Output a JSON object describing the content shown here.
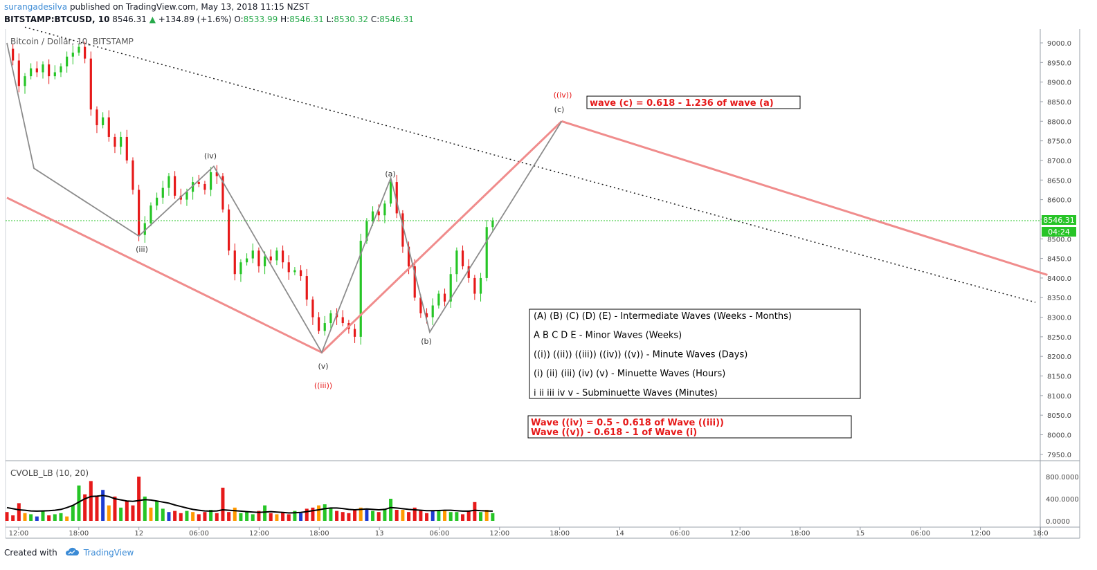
{
  "header": {
    "author": "surangadesilva",
    "published_text": "published on TradingView.com, May 13, 2018 11:15 NZST",
    "symbol": "BITSTAMP:BTCUSD, 10",
    "last": "8546.31",
    "arrow": "▲",
    "change": "+134.89 (+1.6%)",
    "open_label": "O:",
    "open": "8533.99",
    "high_label": "H:",
    "high": "8546.31",
    "low_label": "L:",
    "low": "8530.32",
    "close_label": "C:",
    "close": "8546.31"
  },
  "chart_title": "Bitcoin / Dollar, 10, BITSTAMP",
  "price_badge": "8546.31",
  "countdown_badge": "04:24",
  "indicator_label": "CVOLB_LB (10, 20)",
  "footer": {
    "created_with": "Created with",
    "brand": "TradingView",
    "icon": "tradingview-cloud-icon"
  },
  "colors": {
    "up": "#26c526",
    "down": "#e61919",
    "wave_red": "#f08c8c",
    "wave_gray": "#8c8c8c",
    "price_line": "#27c427",
    "annotation_red": "#e61919"
  },
  "annotations": {
    "wave_c_box": "wave (c) = 0.618 - 1.236 of wave (a)",
    "iv_red": "((iv))",
    "iii_red": "((iii))",
    "label_c": "(c)",
    "label_a": "(a)",
    "label_b": "(b)",
    "label_iv": "(iv)",
    "label_iii": "(iii)",
    "label_v": "(v)",
    "legend_lines": [
      "(A) (B) (C) (D) (E) - Intermediate Waves (Weeks - Months)",
      "A B C D E - Minor Waves (Weeks)",
      "((i)) ((ii)) ((iii)) ((iv)) ((v)) - Minute Waves (Days)",
      "(i) (ii) (iii) (iv) (v) - Minuette Waves (Hours)",
      "i ii iii iv v - Subminuette Waves (Minutes)"
    ],
    "ratio_lines": [
      "Wave ((iv) = 0.5 - 0.618 of Wave ((iii))",
      "Wave ((v)) - 0.618 - 1 of Wave (i)"
    ]
  },
  "chart_data": {
    "type": "candlestick",
    "title": "Bitcoin / Dollar, 10, BITSTAMP",
    "y_axis": {
      "ylim": [
        7925,
        9040
      ],
      "ticks": [
        9000,
        8950,
        8900,
        8850,
        8800,
        8750,
        8700,
        8650,
        8600,
        8550,
        8500,
        8450,
        8400,
        8350,
        8300,
        8250,
        8200,
        8150,
        8100,
        8050,
        8000,
        7950
      ]
    },
    "volume_axis": {
      "ticks": [
        "800.0000",
        "400.0000",
        "0.0000"
      ]
    },
    "x_axis": {
      "ticks": [
        "12:00",
        "18:00",
        "12",
        "06:00",
        "12:00",
        "18:00",
        "13",
        "06:00",
        "12:00",
        "18:00",
        "14",
        "06:00",
        "12:00",
        "18:00",
        "15",
        "06:00",
        "12:00",
        "18:0"
      ]
    },
    "last_price": 8546.31,
    "wave_path_gray": [
      [
        0,
        9000
      ],
      [
        4.5,
        8680
      ],
      [
        22,
        8507
      ],
      [
        34.5,
        8685
      ],
      [
        52.5,
        8210
      ],
      [
        64,
        8655
      ],
      [
        70.5,
        8262
      ],
      [
        92.5,
        8800
      ]
    ],
    "channel_upper_red": [
      [
        92.5,
        8800
      ],
      [
        173.5,
        8408
      ]
    ],
    "channel_lower_red": [
      [
        0,
        8605
      ],
      [
        52.5,
        8210
      ],
      [
        92.5,
        8800
      ]
    ],
    "trendline_dotted": [
      [
        3,
        9040
      ],
      [
        171.5,
        8338
      ]
    ],
    "price_path": [
      [
        0,
        8985
      ],
      [
        1,
        8955
      ],
      [
        2,
        8890
      ],
      [
        3,
        8915
      ],
      [
        4,
        8935
      ],
      [
        5,
        8925
      ],
      [
        6,
        8945
      ],
      [
        7,
        8915
      ],
      [
        8,
        8925
      ],
      [
        9,
        8940
      ],
      [
        10,
        8965
      ],
      [
        11,
        8975
      ],
      [
        12,
        8990
      ],
      [
        13,
        8960
      ],
      [
        14,
        8830
      ],
      [
        15,
        8790
      ],
      [
        16,
        8810
      ],
      [
        17,
        8760
      ],
      [
        18,
        8735
      ],
      [
        19,
        8760
      ],
      [
        20,
        8700
      ],
      [
        21,
        8625
      ],
      [
        22,
        8510
      ],
      [
        23,
        8540
      ],
      [
        24,
        8585
      ],
      [
        25,
        8605
      ],
      [
        26,
        8630
      ],
      [
        27,
        8660
      ],
      [
        28,
        8610
      ],
      [
        29,
        8600
      ],
      [
        30,
        8620
      ],
      [
        31,
        8645
      ],
      [
        32,
        8640
      ],
      [
        33,
        8625
      ],
      [
        34,
        8670
      ],
      [
        35,
        8660
      ],
      [
        36,
        8575
      ],
      [
        37,
        8470
      ],
      [
        38,
        8410
      ],
      [
        39,
        8440
      ],
      [
        40,
        8450
      ],
      [
        41,
        8470
      ],
      [
        42,
        8430
      ],
      [
        43,
        8455
      ],
      [
        44,
        8445
      ],
      [
        45,
        8470
      ],
      [
        46,
        8440
      ],
      [
        47,
        8415
      ],
      [
        48,
        8420
      ],
      [
        49,
        8405
      ],
      [
        50,
        8345
      ],
      [
        51,
        8300
      ],
      [
        52,
        8265
      ],
      [
        53,
        8285
      ],
      [
        54,
        8310
      ],
      [
        55,
        8300
      ],
      [
        56,
        8285
      ],
      [
        57,
        8270
      ],
      [
        58,
        8250
      ],
      [
        59,
        8495
      ],
      [
        60,
        8545
      ],
      [
        61,
        8570
      ],
      [
        62,
        8560
      ],
      [
        63,
        8590
      ],
      [
        64,
        8645
      ],
      [
        65,
        8565
      ],
      [
        66,
        8480
      ],
      [
        67,
        8430
      ],
      [
        68,
        8350
      ],
      [
        69,
        8310
      ],
      [
        70,
        8300
      ],
      [
        71,
        8330
      ],
      [
        72,
        8360
      ],
      [
        73,
        8340
      ],
      [
        74,
        8410
      ],
      [
        75,
        8470
      ],
      [
        76,
        8430
      ],
      [
        77,
        8400
      ],
      [
        78,
        8360
      ],
      [
        79,
        8400
      ],
      [
        80,
        8530
      ],
      [
        81,
        8546.31
      ]
    ],
    "volume_bars": [
      40,
      25,
      80,
      35,
      30,
      20,
      45,
      25,
      30,
      35,
      20,
      70,
      160,
      120,
      180,
      110,
      140,
      70,
      110,
      60,
      90,
      70,
      200,
      110,
      60,
      90,
      55,
      40,
      45,
      35,
      45,
      40,
      30,
      40,
      50,
      35,
      150,
      40,
      60,
      35,
      40,
      30,
      45,
      70,
      35,
      30,
      40,
      30,
      45,
      35,
      55,
      60,
      70,
      75,
      60,
      45,
      40,
      35,
      50,
      60,
      55,
      45,
      40,
      55,
      100,
      50,
      50,
      40,
      60,
      45,
      35,
      45,
      45,
      50,
      40,
      40,
      30,
      45,
      85,
      40,
      50,
      35
    ],
    "volume_ma": [
      60,
      55,
      50,
      48,
      45,
      44,
      45,
      46,
      48,
      52,
      60,
      70,
      85,
      100,
      110,
      112,
      115,
      110,
      100,
      95,
      90,
      88,
      92,
      96,
      94,
      90,
      85,
      80,
      72,
      65,
      58,
      52,
      48,
      45,
      44,
      45,
      50,
      48,
      46,
      44,
      42,
      40,
      38,
      40,
      42,
      40,
      38,
      36,
      37,
      38,
      42,
      46,
      50,
      55,
      58,
      58,
      56,
      52,
      50,
      52,
      54,
      52,
      50,
      52,
      60,
      58,
      55,
      52,
      50,
      48,
      46,
      46,
      47,
      48,
      48,
      46,
      44,
      44,
      48,
      46,
      45,
      44
    ]
  }
}
